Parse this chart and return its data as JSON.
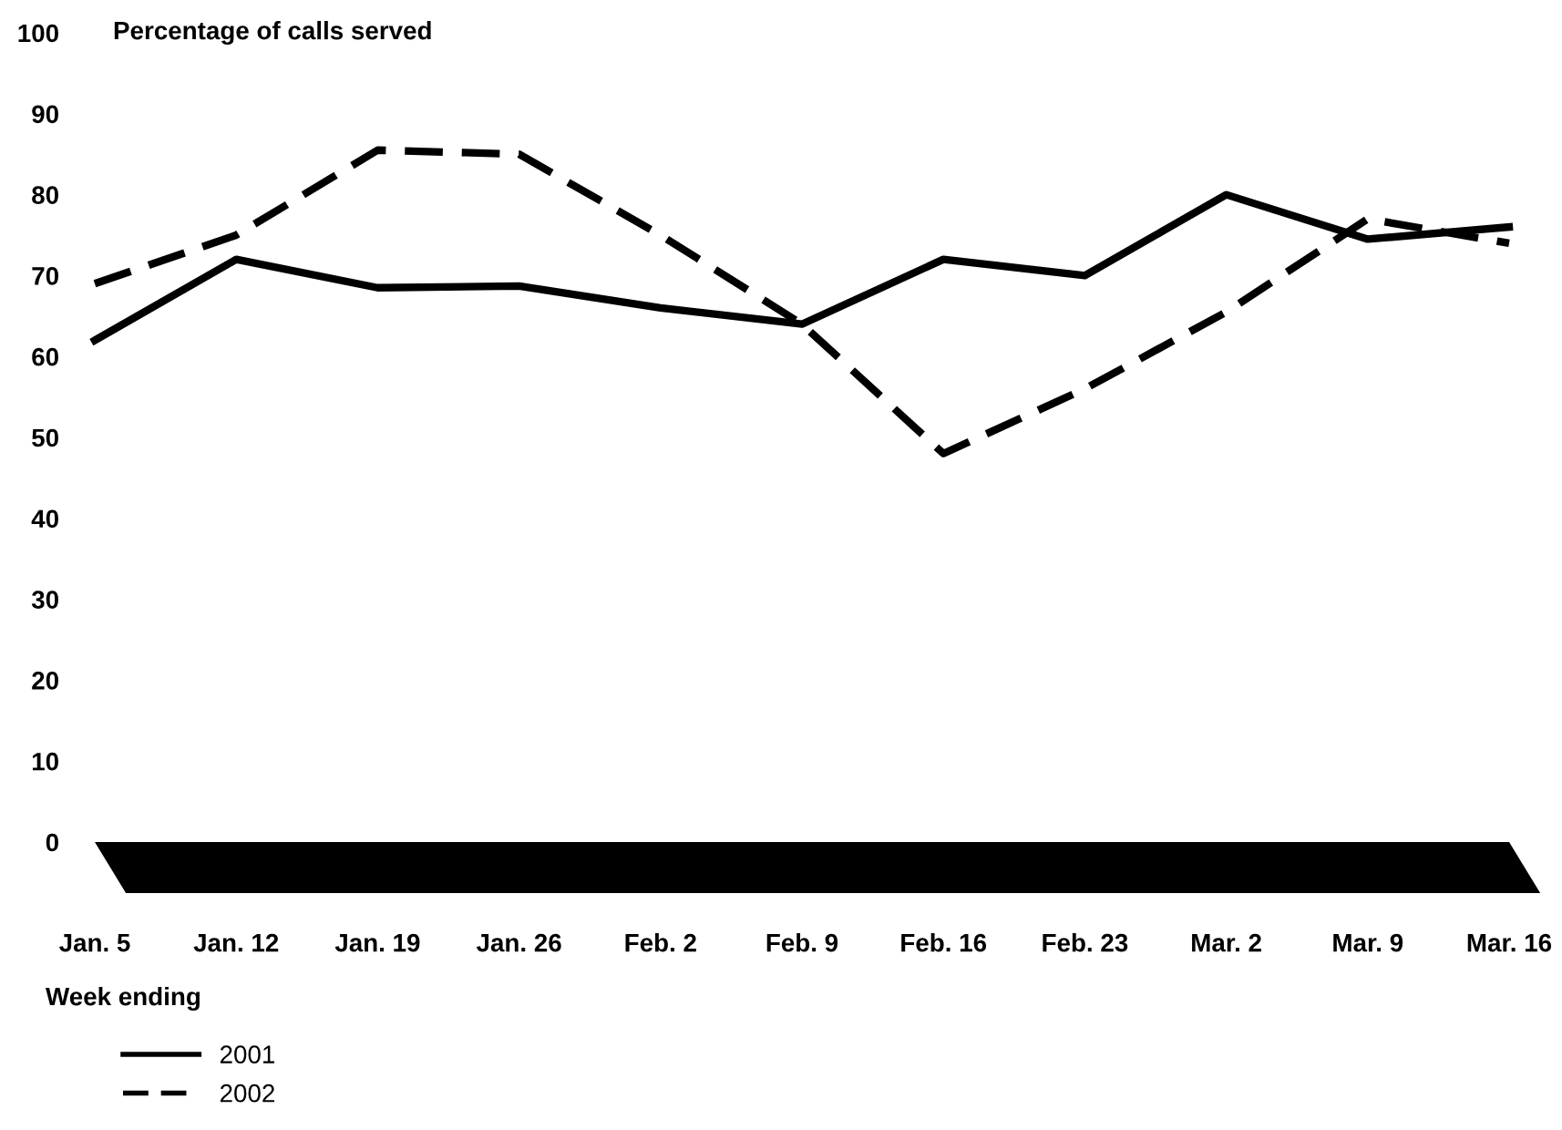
{
  "chart_data": {
    "type": "line",
    "ylabel": "Percentage of calls served",
    "xlabel": "Week ending",
    "categories": [
      "Jan. 5",
      "Jan. 12",
      "Jan. 19",
      "Jan. 26",
      "Feb. 2",
      "Feb. 9",
      "Feb. 16",
      "Feb. 23",
      "Mar. 2",
      "Mar. 9",
      "Mar. 16"
    ],
    "series": [
      {
        "name": "2001",
        "color": "#000000",
        "line_style": "solid",
        "values": [
          62,
          72,
          68.5,
          68.7,
          66,
          64,
          72,
          70,
          80,
          74.5,
          76
        ]
      },
      {
        "name": "2002",
        "color": "#000000",
        "line_style": "dashed",
        "values": [
          69,
          75,
          85.5,
          85,
          75,
          64,
          48,
          56,
          65.5,
          77,
          74
        ]
      }
    ],
    "ylim": [
      0,
      100
    ],
    "yticks": [
      0,
      10,
      20,
      30,
      40,
      50,
      60,
      70,
      80,
      90,
      100
    ],
    "grid": false,
    "legend": "bottom",
    "marker": "none"
  }
}
